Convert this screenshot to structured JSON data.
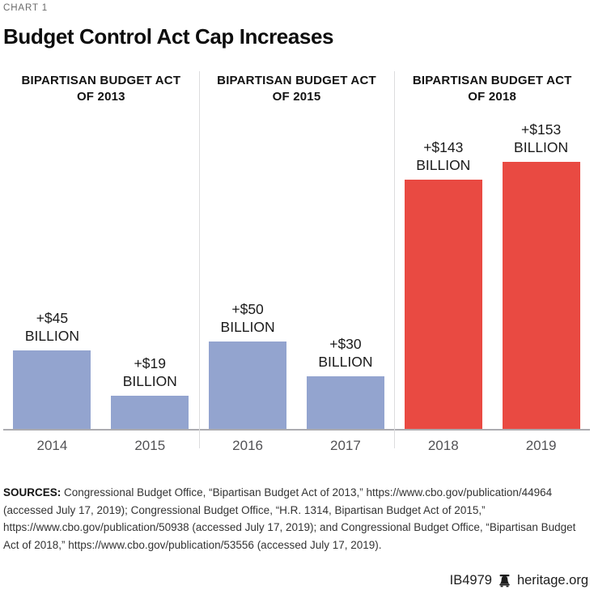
{
  "header": {
    "kicker": "CHART 1",
    "title": "Budget Control Act Cap Increases"
  },
  "chart_data": {
    "type": "bar",
    "title": "Budget Control Act Cap Increases",
    "unit": "billions of U.S. dollars",
    "ylim": [
      0,
      182
    ],
    "grid": false,
    "legend": "none",
    "axis_line_color": "#acacb0",
    "divider_color": "#dcdcde",
    "sections": [
      {
        "header_line1": "BIPARTISAN BUDGET ACT",
        "header_line2": "OF 2013",
        "color": "#93a4cf",
        "bars": [
          {
            "year": "2014",
            "value": 45,
            "label_line1": "+$45",
            "label_line2": "BILLION"
          },
          {
            "year": "2015",
            "value": 19,
            "label_line1": "+$19",
            "label_line2": "BILLION"
          }
        ]
      },
      {
        "header_line1": "BIPARTISAN BUDGET ACT",
        "header_line2": "OF 2015",
        "color": "#93a4cf",
        "bars": [
          {
            "year": "2016",
            "value": 50,
            "label_line1": "+$50",
            "label_line2": "BILLION"
          },
          {
            "year": "2017",
            "value": 30,
            "label_line1": "+$30",
            "label_line2": "BILLION"
          }
        ]
      },
      {
        "header_line1": "BIPARTISAN BUDGET ACT",
        "header_line2": "OF 2018",
        "color": "#e94a42",
        "bars": [
          {
            "year": "2018",
            "value": 143,
            "label_line1": "+$143",
            "label_line2": "BILLION"
          },
          {
            "year": "2019",
            "value": 153,
            "label_line1": "+$153",
            "label_line2": "BILLION"
          }
        ]
      }
    ]
  },
  "sources": {
    "label": "SOURCES:",
    "text": "Congressional Budget Office, “Bipartisan Budget Act of 2013,” https://www.cbo.gov/publication/44964 (accessed July 17, 2019); Congressional Budget Office, “H.R. 1314, Bipartisan Budget Act of 2015,” https://www.cbo.gov/publication/50938 (accessed July 17, 2019); and Congressional Budget Office, “Bipartisan Budget Act of 2018,” https://www.cbo.gov/publication/53556 (accessed July 17, 2019)."
  },
  "footer": {
    "report_id": "IB4979",
    "site": "heritage.org"
  }
}
